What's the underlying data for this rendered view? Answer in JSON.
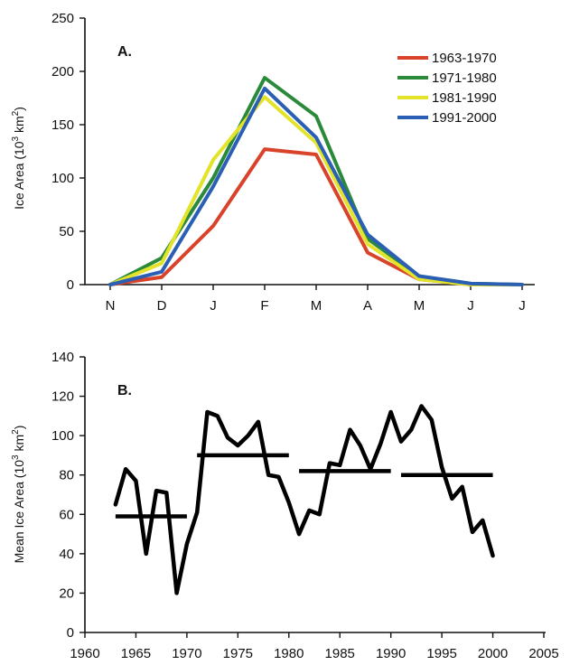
{
  "chart_data": [
    {
      "panel": "A.",
      "type": "line",
      "ylabel": "Ice Area (10",
      "ylabel_sup": "3",
      "ylabel_unit": " km",
      "ylabel_unit_sup": "2",
      "ylabel_end": ")",
      "categories": [
        "N",
        "D",
        "J",
        "F",
        "M",
        "A",
        "M",
        "J",
        "J"
      ],
      "ylim": [
        0,
        250
      ],
      "yticks": [
        "0",
        "50",
        "100",
        "150",
        "200",
        "250"
      ],
      "legend_position": "top-right",
      "series": [
        {
          "name": "1963-1970",
          "color": "#d9432a",
          "values": [
            0,
            7,
            55,
            127,
            122,
            30,
            5,
            0,
            0
          ]
        },
        {
          "name": "1971-1980",
          "color": "#2a8a3a",
          "values": [
            0,
            25,
            100,
            194,
            158,
            43,
            8,
            1,
            0
          ]
        },
        {
          "name": "1981-1990",
          "color": "#e3e32a",
          "values": [
            0,
            20,
            117,
            176,
            133,
            38,
            5,
            0,
            0
          ]
        },
        {
          "name": "1991-2000",
          "color": "#2a5fb5",
          "values": [
            0,
            12,
            92,
            184,
            138,
            47,
            8,
            1,
            0
          ]
        }
      ]
    },
    {
      "panel": "B.",
      "type": "line",
      "ylabel": "Mean Ice Area (10",
      "ylabel_sup": "3",
      "ylabel_unit": " km",
      "ylabel_unit_sup": "2",
      "ylabel_end": ")",
      "xlim": [
        1960,
        2005
      ],
      "ylim": [
        0,
        140
      ],
      "xticks": [
        "1960",
        "1965",
        "1970",
        "1975",
        "1980",
        "1985",
        "1990",
        "1995",
        "2000",
        "2005"
      ],
      "yticks": [
        "0",
        "20",
        "40",
        "60",
        "80",
        "100",
        "120",
        "140"
      ],
      "series": [
        {
          "color": "#000000",
          "x": [
            1963,
            1964,
            1965,
            1966,
            1967,
            1968,
            1969,
            1970,
            1971,
            1972,
            1973,
            1974,
            1975,
            1976,
            1977,
            1978,
            1979,
            1980,
            1981,
            1982,
            1983,
            1984,
            1985,
            1986,
            1987,
            1988,
            1989,
            1990,
            1991,
            1992,
            1993,
            1994,
            1995,
            1996,
            1997,
            1998,
            1999,
            2000
          ],
          "values": [
            65,
            83,
            77,
            40,
            72,
            71,
            20,
            45,
            61,
            112,
            110,
            99,
            95,
            100,
            107,
            80,
            79,
            66,
            50,
            62,
            60,
            86,
            85,
            103,
            95,
            83,
            96,
            112,
            97,
            103,
            115,
            108,
            84,
            68,
            74,
            51,
            57,
            39
          ]
        }
      ],
      "decade_means": [
        {
          "x": [
            1963,
            1970
          ],
          "value": 59
        },
        {
          "x": [
            1971,
            1980
          ],
          "value": 90
        },
        {
          "x": [
            1981,
            1990
          ],
          "value": 82
        },
        {
          "x": [
            1991,
            2000
          ],
          "value": 80
        }
      ]
    }
  ]
}
